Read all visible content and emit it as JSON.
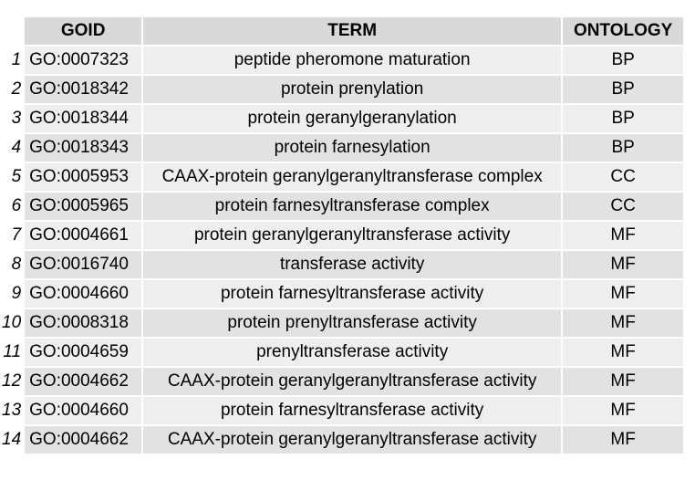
{
  "chart_data": {
    "type": "table",
    "columns": [
      "GOID",
      "TERM",
      "ONTOLOGY"
    ],
    "rows": [
      {
        "index": "1",
        "goid": "GO:0007323",
        "term": "peptide pheromone maturation",
        "ontology": "BP"
      },
      {
        "index": "2",
        "goid": "GO:0018342",
        "term": "protein prenylation",
        "ontology": "BP"
      },
      {
        "index": "3",
        "goid": "GO:0018344",
        "term": "protein geranylgeranylation",
        "ontology": "BP"
      },
      {
        "index": "4",
        "goid": "GO:0018343",
        "term": "protein farnesylation",
        "ontology": "BP"
      },
      {
        "index": "5",
        "goid": "GO:0005953",
        "term": "CAAX-protein geranylgeranyltransferase complex",
        "ontology": "CC"
      },
      {
        "index": "6",
        "goid": "GO:0005965",
        "term": "protein farnesyltransferase complex",
        "ontology": "CC"
      },
      {
        "index": "7",
        "goid": "GO:0004661",
        "term": "protein geranylgeranyltransferase activity",
        "ontology": "MF"
      },
      {
        "index": "8",
        "goid": "GO:0016740",
        "term": "transferase activity",
        "ontology": "MF"
      },
      {
        "index": "9",
        "goid": "GO:0004660",
        "term": "protein farnesyltransferase activity",
        "ontology": "MF"
      },
      {
        "index": "10",
        "goid": "GO:0008318",
        "term": "protein prenyltransferase activity",
        "ontology": "MF"
      },
      {
        "index": "11",
        "goid": "GO:0004659",
        "term": "prenyltransferase activity",
        "ontology": "MF"
      },
      {
        "index": "12",
        "goid": "GO:0004662",
        "term": "CAAX-protein geranylgeranyltransferase activity",
        "ontology": "MF"
      },
      {
        "index": "13",
        "goid": "GO:0004660",
        "term": "protein farnesyltransferase activity",
        "ontology": "MF"
      },
      {
        "index": "14",
        "goid": "GO:0004662",
        "term": "CAAX-protein geranylgeranyltransferase activity",
        "ontology": "MF"
      }
    ],
    "colors": {
      "header_bg": "#d9d9d9",
      "row_bg_odd": "#efefef",
      "row_bg_even": "#e2e2e2"
    }
  }
}
